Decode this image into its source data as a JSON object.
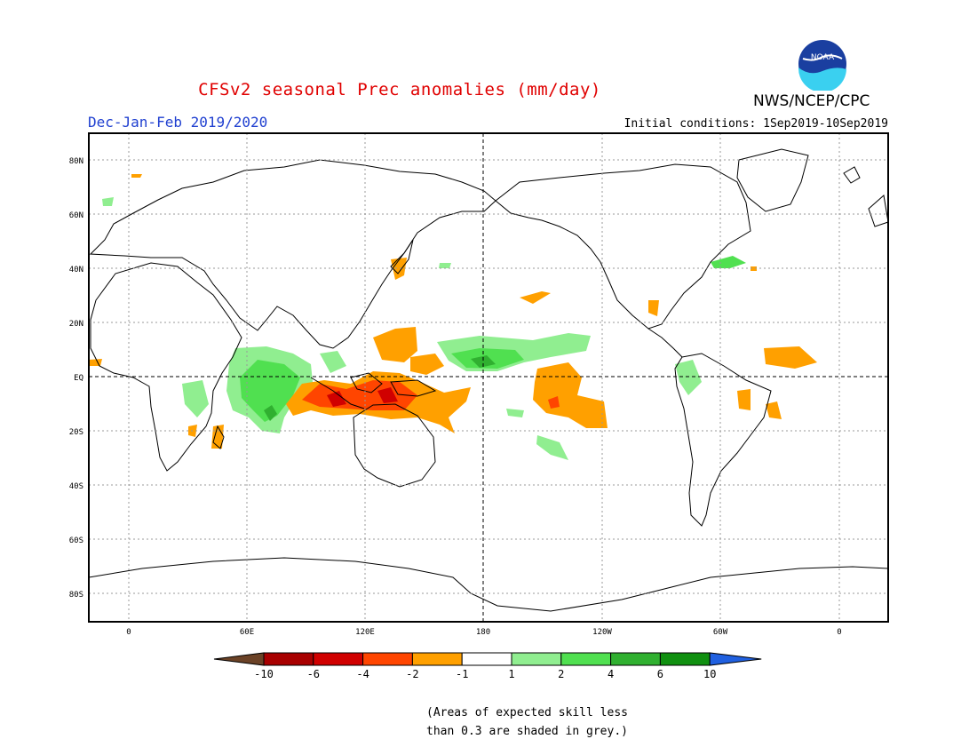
{
  "title": "CFSv2 seasonal Prec anomalies (mm/day)",
  "season": "Dec-Jan-Feb 2019/2020",
  "initial_conditions": "Initial conditions: 1Sep2019-10Sep2019",
  "agency": "NWS/NCEP/CPC",
  "logo_text": "NOAA",
  "lat_labels": [
    "80N",
    "60N",
    "40N",
    "20N",
    "EQ",
    "20S",
    "40S",
    "60S",
    "80S"
  ],
  "lon_labels": [
    "0",
    "60E",
    "120E",
    "180",
    "120W",
    "60W",
    "0"
  ],
  "colorbar": {
    "labels": [
      "-10",
      "-6",
      "-4",
      "-2",
      "-1",
      "1",
      "2",
      "4",
      "6",
      "10"
    ],
    "colors": [
      "#6b4226",
      "#a80000",
      "#d00000",
      "#ff4500",
      "#ffa000",
      "#ffffff",
      "#90ee90",
      "#50e050",
      "#30b030",
      "#109010",
      "#2060e0"
    ]
  },
  "note_line1": "(Areas of expected skill less",
  "note_line2": "than 0.3 are shaded in grey.)",
  "colors": {
    "dry_strong": "#ff4500",
    "dry_mod": "#ffa000",
    "wet_light": "#90ee90",
    "wet_mod": "#50e050",
    "wet_strong": "#30b030",
    "wet_max": "#109010"
  }
}
